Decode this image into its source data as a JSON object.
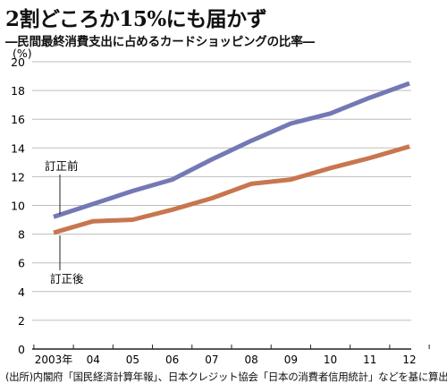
{
  "title": "2割どころか15%にも届かず",
  "subtitle": "―民間最終消費支出に占めるカードショッピングの比率―",
  "source": "(出所)内閣府「国民経済計算年報」、日本クレジット協会「日本の消費者信用統計」などを基に算出",
  "colors": {
    "before": "#7478b4",
    "after": "#c8764f",
    "grid": "#bdbdbd",
    "axis": "#222222"
  },
  "chart_data": {
    "type": "line",
    "unit_label": "(%)",
    "ylim": [
      0,
      20
    ],
    "yticks": [
      0,
      2,
      4,
      6,
      8,
      10,
      12,
      14,
      16,
      18,
      20
    ],
    "x": [
      "2003年",
      "04",
      "05",
      "06",
      "07",
      "08",
      "09",
      "10",
      "11",
      "12"
    ],
    "grid": true,
    "series": [
      {
        "name": "訂正前",
        "values": [
          9.2,
          10.1,
          11.0,
          11.8,
          13.2,
          14.5,
          15.7,
          16.4,
          17.5,
          18.5
        ]
      },
      {
        "name": "訂正後",
        "values": [
          8.1,
          8.9,
          9.0,
          9.7,
          10.5,
          11.5,
          11.8,
          12.6,
          13.3,
          14.1
        ]
      }
    ]
  }
}
